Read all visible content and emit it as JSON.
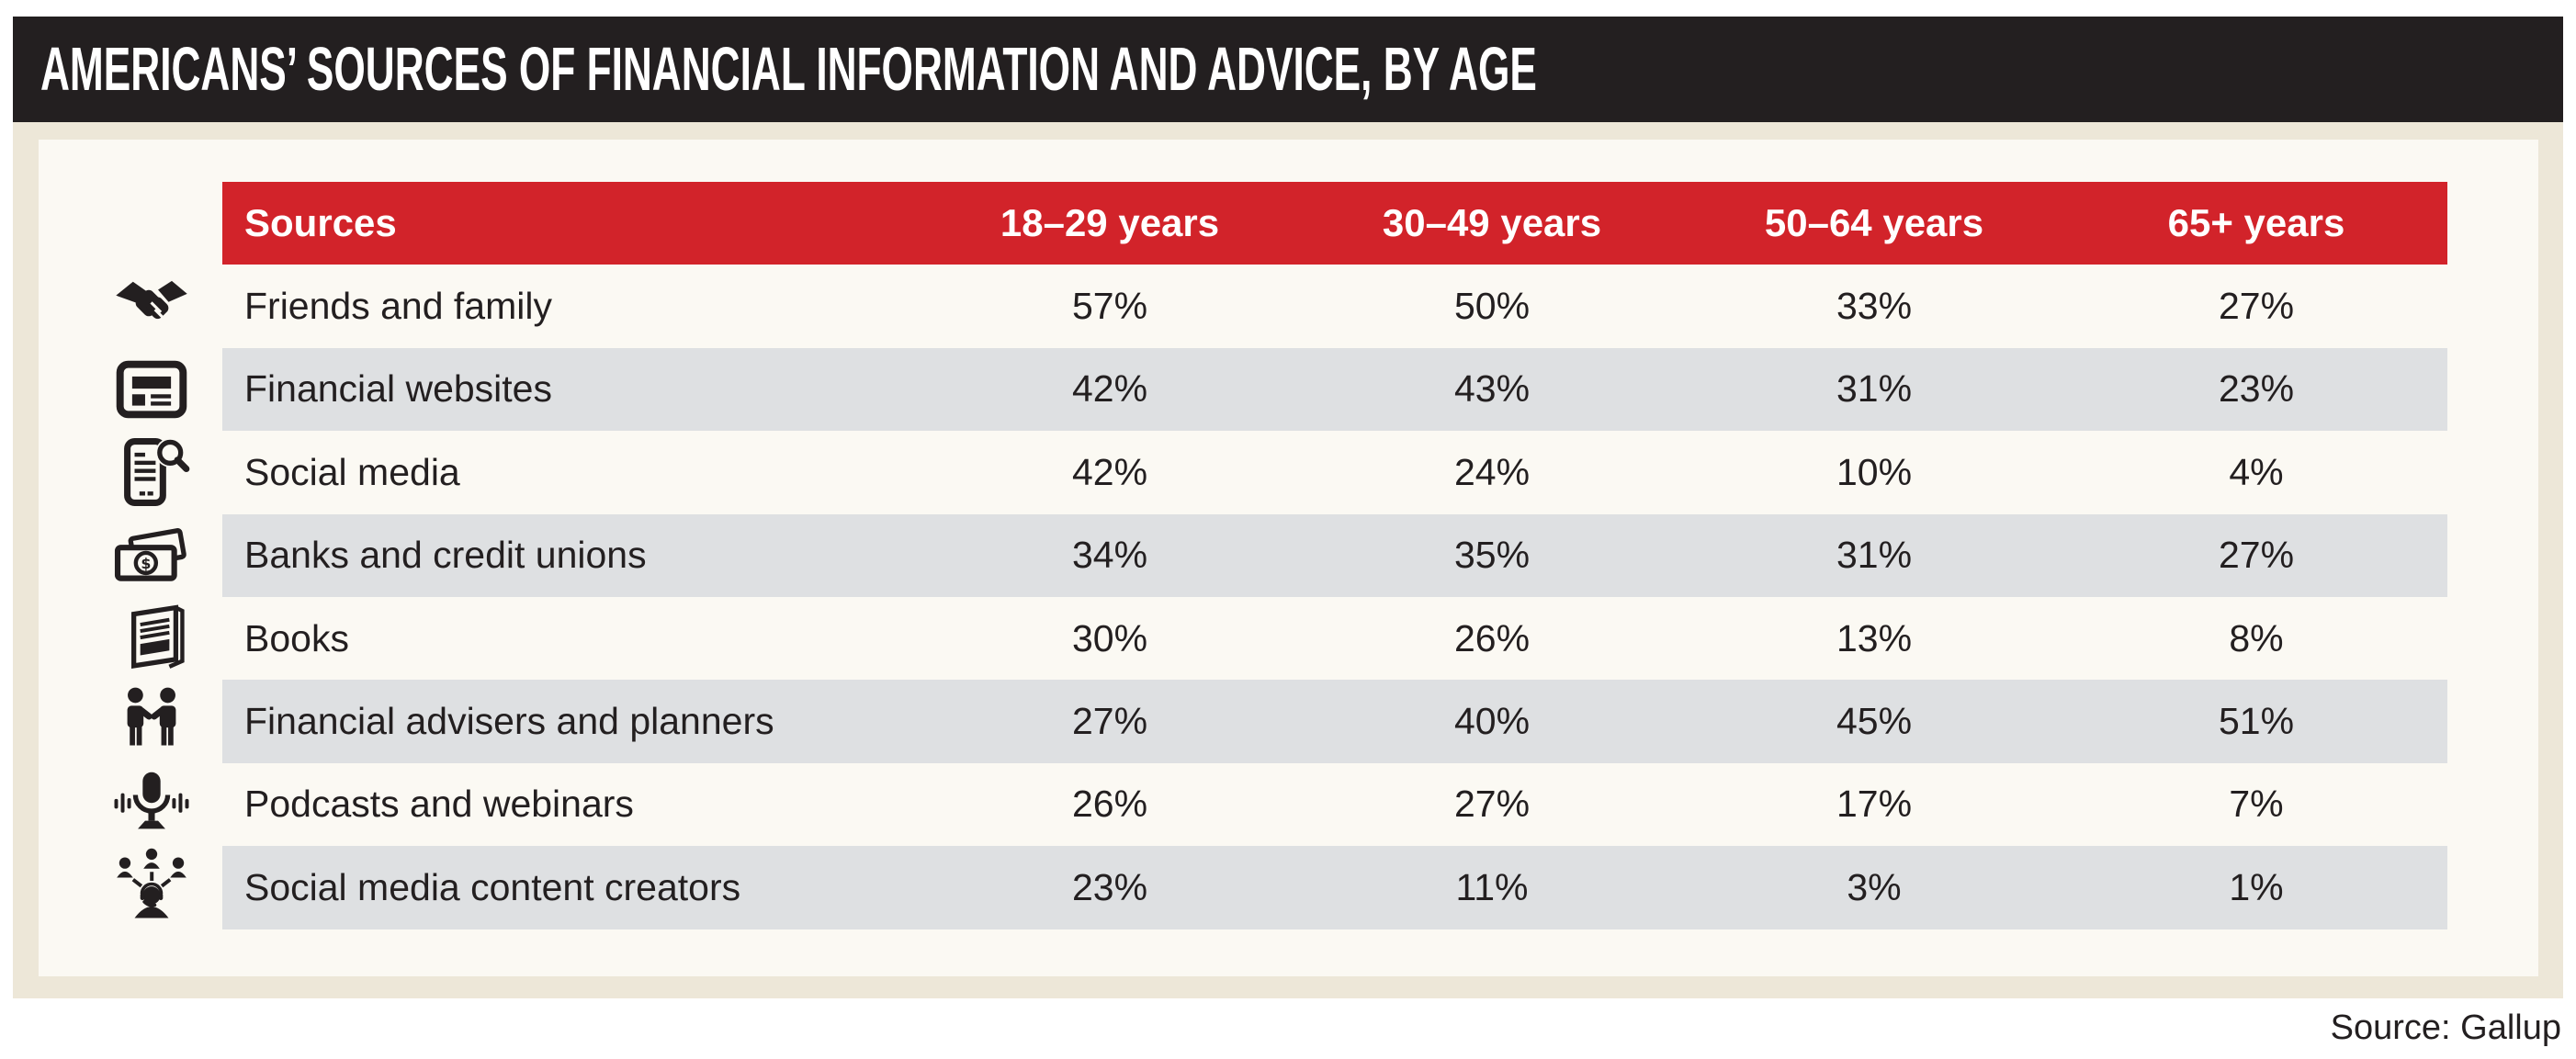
{
  "title": "AMERICANS’ SOURCES OF FINANCIAL INFORMATION AND ADVICE, BY AGE",
  "source_note": "Source: Gallup",
  "colors": {
    "ink": "#231F20",
    "accent-red": "#D2232A",
    "frame-beige": "#EDE7D8",
    "panel-offwhite": "#FBF9F3",
    "stripe-gray": "#DEE0E2"
  },
  "table": {
    "header": {
      "sources_label": "Sources",
      "age_columns": [
        "18–29 years",
        "30–49 years",
        "50–64 years",
        "65+ years"
      ]
    },
    "rows": [
      {
        "icon": "handshake-icon",
        "label": "Friends and family",
        "values": [
          "57%",
          "50%",
          "33%",
          "27%"
        ]
      },
      {
        "icon": "financial-website-icon",
        "label": "Financial websites",
        "values": [
          "42%",
          "43%",
          "31%",
          "23%"
        ]
      },
      {
        "icon": "social-media-search-icon",
        "label": "Social media",
        "values": [
          "42%",
          "24%",
          "10%",
          "4%"
        ]
      },
      {
        "icon": "banknotes-icon",
        "label": "Banks and credit unions",
        "values": [
          "34%",
          "35%",
          "31%",
          "27%"
        ]
      },
      {
        "icon": "books-icon",
        "label": "Books",
        "values": [
          "30%",
          "26%",
          "13%",
          "8%"
        ]
      },
      {
        "icon": "advisers-icon",
        "label": "Financial advisers and planners",
        "values": [
          "27%",
          "40%",
          "45%",
          "51%"
        ]
      },
      {
        "icon": "podcast-microphone-icon",
        "label": "Podcasts and webinars",
        "values": [
          "26%",
          "27%",
          "17%",
          "7%"
        ]
      },
      {
        "icon": "content-creators-icon",
        "label": "Social media content creators",
        "values": [
          "23%",
          "11%",
          "3%",
          "1%"
        ]
      }
    ]
  },
  "chart_data": {
    "type": "table",
    "title": "AMERICANS’ SOURCES OF FINANCIAL INFORMATION AND ADVICE, BY AGE",
    "unit": "%",
    "columns": [
      "Sources",
      "18–29 years",
      "30–49 years",
      "50–64 years",
      "65+ years"
    ],
    "rows": [
      [
        "Friends and family",
        57,
        50,
        33,
        27
      ],
      [
        "Financial websites",
        42,
        43,
        31,
        23
      ],
      [
        "Social media",
        42,
        24,
        10,
        4
      ],
      [
        "Banks and credit unions",
        34,
        35,
        31,
        27
      ],
      [
        "Books",
        30,
        26,
        13,
        8
      ],
      [
        "Financial advisers and planners",
        27,
        40,
        45,
        51
      ],
      [
        "Podcasts and webinars",
        26,
        27,
        17,
        7
      ],
      [
        "Social media content creators",
        23,
        11,
        3,
        1
      ]
    ],
    "source": "Gallup"
  }
}
